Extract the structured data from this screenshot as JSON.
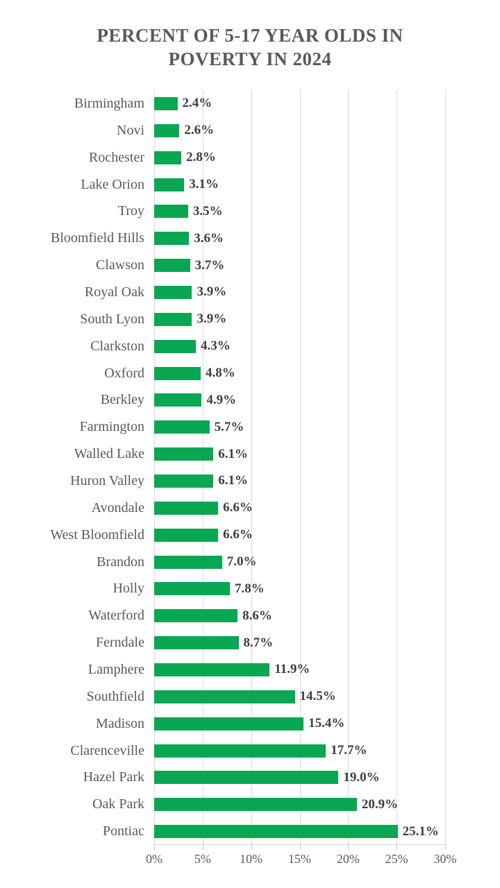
{
  "chart_data": {
    "type": "bar",
    "orientation": "horizontal",
    "title": "PERCENT OF 5-17 YEAR OLDS IN POVERTY IN 2024",
    "title_lines": [
      "PERCENT OF 5-17 YEAR OLDS IN",
      "POVERTY IN 2024"
    ],
    "categories": [
      "Birmingham",
      "Novi",
      "Rochester",
      "Lake Orion",
      "Troy",
      "Bloomfield Hills",
      "Clawson",
      "Royal Oak",
      "South Lyon",
      "Clarkston",
      "Oxford",
      "Berkley",
      "Farmington",
      "Walled Lake",
      "Huron Valley",
      "Avondale",
      "West Bloomfield",
      "Brandon",
      "Holly",
      "Waterford",
      "Ferndale",
      "Lamphere",
      "Southfield",
      "Madison",
      "Clarenceville",
      "Hazel Park",
      "Oak Park",
      "Pontiac"
    ],
    "values": [
      2.4,
      2.6,
      2.8,
      3.1,
      3.5,
      3.6,
      3.7,
      3.9,
      3.9,
      4.3,
      4.8,
      4.9,
      5.7,
      6.1,
      6.1,
      6.6,
      6.6,
      7.0,
      7.8,
      8.6,
      8.7,
      11.9,
      14.5,
      15.4,
      17.7,
      19.0,
      20.9,
      25.1
    ],
    "value_labels": [
      "2.4%",
      "2.6%",
      "2.8%",
      "3.1%",
      "3.5%",
      "3.6%",
      "3.7%",
      "3.9%",
      "3.9%",
      "4.3%",
      "4.8%",
      "4.9%",
      "5.7%",
      "6.1%",
      "6.1%",
      "6.6%",
      "6.6%",
      "7.0%",
      "7.8%",
      "8.6%",
      "8.7%",
      "11.9%",
      "14.5%",
      "15.4%",
      "17.7%",
      "19.0%",
      "20.9%",
      "25.1%"
    ],
    "xlim": [
      0,
      30
    ],
    "x_ticks": [
      0,
      5,
      10,
      15,
      20,
      25,
      30
    ],
    "x_tick_labels": [
      "0%",
      "5%",
      "10%",
      "15%",
      "20%",
      "25%",
      "30%"
    ],
    "grid": true,
    "legend": false,
    "colors": {
      "bar": "#09A752",
      "gridline": "#D9D9D9",
      "tick": "#BFBFBF",
      "title_text": "#595959",
      "category_text": "#595959",
      "value_text": "#3D3D3D",
      "axis_text": "#595959",
      "background": "#FFFFFF"
    }
  }
}
